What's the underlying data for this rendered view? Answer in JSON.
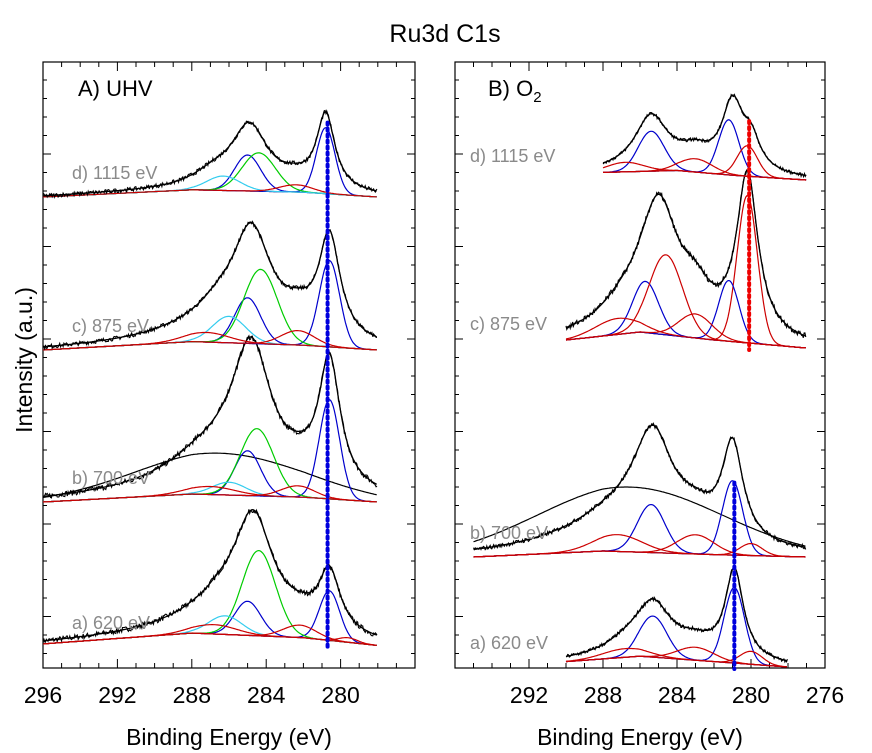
{
  "figure": {
    "title": "Ru3d C1s",
    "ylabel": "Intensity (a.u.)"
  },
  "colors": {
    "spectrum": "#000000",
    "background_fit": "#7b4a1a",
    "blue_component": "#0000cc",
    "green_component": "#00cc00",
    "cyan_component": "#33ccee",
    "red_component": "#cc0000",
    "marker_blue": "#0000dd",
    "marker_red": "#ee0000",
    "energy_label": "#8a8a8a"
  },
  "chart_data": [
    {
      "type": "line",
      "panel": "A",
      "label_prefix": "A) ",
      "label_main": "UHV",
      "label_sub": "",
      "xlabel": "Binding Energy (eV)",
      "xlim": [
        296,
        276
      ],
      "x_reversed": true,
      "ticks": [
        296,
        292,
        288,
        284,
        280
      ],
      "tick_labels": [
        "296",
        "292",
        "288",
        "284",
        "280"
      ],
      "marker_line": {
        "x": 280.7,
        "color": "blue",
        "from_trace": 0,
        "to_trace": 3
      },
      "traces": [
        {
          "label": "a) 620 eV",
          "ref": "a",
          "x_range": [
            296,
            278
          ],
          "peaks": [
            [
              280.6,
              0.7,
              0.38
            ],
            [
              284.7,
              1.3,
              0.72
            ],
            [
              286.5,
              1.4,
              0.1
            ],
            [
              282.2,
              1.2,
              0.06
            ],
            [
              287.5,
              3.0,
              0.06
            ]
          ],
          "background": [
            [
              296,
              0.02
            ],
            [
              288,
              0.09
            ],
            [
              282,
              0.06
            ],
            [
              278,
              0.01
            ]
          ],
          "components": [
            {
              "color": "blue",
              "center": 280.6,
              "width": 0.55,
              "height": 0.32
            },
            {
              "color": "blue",
              "center": 285.0,
              "width": 0.7,
              "height": 0.22
            },
            {
              "color": "green",
              "center": 284.4,
              "width": 0.9,
              "height": 0.55
            },
            {
              "color": "cyan",
              "center": 286.2,
              "width": 0.9,
              "height": 0.12
            },
            {
              "color": "red",
              "center": 282.2,
              "width": 0.9,
              "height": 0.08
            },
            {
              "color": "red",
              "center": 286.8,
              "width": 1.2,
              "height": 0.06
            },
            {
              "color": "red",
              "center": 279.6,
              "width": 0.5,
              "height": 0.03
            }
          ]
        },
        {
          "label": "b) 700 eV",
          "ref": "b",
          "x_range": [
            296,
            278
          ],
          "peaks": [
            [
              280.6,
              0.7,
              0.78
            ],
            [
              284.8,
              1.3,
              0.82
            ],
            [
              287.0,
              3.0,
              0.22
            ],
            [
              282.2,
              1.0,
              0.06
            ]
          ],
          "background": [
            [
              296,
              0.0
            ],
            [
              288,
              0.05
            ],
            [
              282,
              0.03
            ],
            [
              278,
              0.0
            ]
          ],
          "broad_background": {
            "center": 286.5,
            "width": 4.5,
            "height": 0.26
          },
          "components": [
            {
              "color": "blue",
              "center": 280.6,
              "width": 0.55,
              "height": 0.62
            },
            {
              "color": "blue",
              "center": 285.0,
              "width": 0.7,
              "height": 0.28
            },
            {
              "color": "green",
              "center": 284.5,
              "width": 0.9,
              "height": 0.42
            },
            {
              "color": "cyan",
              "center": 286.0,
              "width": 0.9,
              "height": 0.08
            },
            {
              "color": "red",
              "center": 282.3,
              "width": 0.9,
              "height": 0.07
            },
            {
              "color": "red",
              "center": 287.0,
              "width": 1.3,
              "height": 0.05
            }
          ]
        },
        {
          "label": "c) 875 eV",
          "ref": "c",
          "x_range": [
            296,
            278
          ],
          "peaks": [
            [
              280.6,
              0.7,
              0.84
            ],
            [
              284.8,
              1.3,
              0.88
            ],
            [
              286.6,
              1.3,
              0.14
            ],
            [
              282.3,
              1.1,
              0.14
            ],
            [
              288.0,
              3.0,
              0.07
            ]
          ],
          "background": [
            [
              296,
              0.0
            ],
            [
              288,
              0.07
            ],
            [
              282,
              0.04
            ],
            [
              278,
              0.0
            ]
          ],
          "components": [
            {
              "color": "blue",
              "center": 280.6,
              "width": 0.55,
              "height": 0.72
            },
            {
              "color": "blue",
              "center": 285.0,
              "width": 0.7,
              "height": 0.38
            },
            {
              "color": "green",
              "center": 284.3,
              "width": 0.9,
              "height": 0.62
            },
            {
              "color": "cyan",
              "center": 286.0,
              "width": 0.9,
              "height": 0.22
            },
            {
              "color": "red",
              "center": 282.3,
              "width": 0.9,
              "height": 0.12
            },
            {
              "color": "red",
              "center": 287.2,
              "width": 1.2,
              "height": 0.08
            }
          ]
        },
        {
          "label": "d) 1115 eV",
          "ref": "d",
          "x_range": [
            296,
            278
          ],
          "peaks": [
            [
              280.8,
              0.6,
              0.62
            ],
            [
              284.9,
              1.2,
              0.52
            ],
            [
              286.8,
              1.3,
              0.1
            ],
            [
              282.5,
              1.0,
              0.06
            ]
          ],
          "background": [
            [
              296,
              0.0
            ],
            [
              288,
              0.06
            ],
            [
              282,
              0.04
            ],
            [
              278,
              0.0
            ]
          ],
          "components": [
            {
              "color": "blue",
              "center": 280.8,
              "width": 0.5,
              "height": 0.55
            },
            {
              "color": "blue",
              "center": 285.0,
              "width": 0.7,
              "height": 0.3
            },
            {
              "color": "green",
              "center": 284.4,
              "width": 0.9,
              "height": 0.32
            },
            {
              "color": "cyan",
              "center": 286.3,
              "width": 0.9,
              "height": 0.12
            },
            {
              "color": "red",
              "center": 282.4,
              "width": 0.9,
              "height": 0.06
            }
          ]
        }
      ]
    },
    {
      "type": "line",
      "panel": "B",
      "label_prefix": "B) O",
      "label_main": "",
      "label_sub": "2",
      "xlabel": "Binding Energy (eV)",
      "xlim": [
        296,
        276
      ],
      "x_reversed": true,
      "ticks": [
        292,
        288,
        284,
        280,
        276
      ],
      "tick_labels": [
        "292",
        "288",
        "284",
        "280",
        "276"
      ],
      "marker_line": {
        "x": 280.9,
        "color": "blue",
        "from_trace": 0,
        "to_trace": 1
      },
      "marker_line_2": {
        "x": 280.1,
        "color": "red",
        "from_trace": 2,
        "to_trace": 3
      },
      "traces": [
        {
          "label": "a) 620 eV",
          "ref": "a",
          "x_range": [
            290,
            278
          ],
          "peaks": [
            [
              280.9,
              0.6,
              0.82
            ],
            [
              285.3,
              1.2,
              0.46
            ],
            [
              283.0,
              1.2,
              0.12
            ],
            [
              286.8,
              1.4,
              0.08
            ]
          ],
          "background": [
            [
              290,
              0.05
            ],
            [
              286,
              0.1
            ],
            [
              282,
              0.05
            ],
            [
              278,
              0.0
            ]
          ],
          "components": [
            {
              "color": "blue",
              "center": 280.9,
              "width": 0.55,
              "height": 0.7
            },
            {
              "color": "blue",
              "center": 285.3,
              "width": 0.75,
              "height": 0.38
            },
            {
              "color": "red",
              "center": 283.0,
              "width": 1.0,
              "height": 0.12
            },
            {
              "color": "red",
              "center": 280.0,
              "width": 0.6,
              "height": 0.12
            },
            {
              "color": "red",
              "center": 286.8,
              "width": 1.2,
              "height": 0.08
            }
          ]
        },
        {
          "label": "b) 700 eV",
          "ref": "b",
          "x_range": [
            295,
            277
          ],
          "peaks": [
            [
              281.0,
              0.7,
              0.8
            ],
            [
              285.3,
              1.3,
              0.78
            ],
            [
              287.0,
              3.5,
              0.28
            ],
            [
              283.0,
              1.2,
              0.16
            ]
          ],
          "background": [
            [
              295,
              0.0
            ],
            [
              288,
              0.05
            ],
            [
              282,
              0.02
            ],
            [
              277,
              0.0
            ]
          ],
          "broad_background": {
            "center": 286.5,
            "width": 5.0,
            "height": 0.54
          },
          "components": [
            {
              "color": "blue",
              "center": 281.0,
              "width": 0.55,
              "height": 0.62
            },
            {
              "color": "blue",
              "center": 285.4,
              "width": 0.75,
              "height": 0.4
            },
            {
              "color": "red",
              "center": 283.0,
              "width": 1.0,
              "height": 0.16
            },
            {
              "color": "red",
              "center": 287.2,
              "width": 1.3,
              "height": 0.14
            },
            {
              "color": "red",
              "center": 280.0,
              "width": 0.6,
              "height": 0.1
            }
          ]
        },
        {
          "label": "c) 875 eV",
          "ref": "c",
          "x_range": [
            290,
            277
          ],
          "peaks": [
            [
              280.2,
              0.7,
              1.0
            ],
            [
              285.0,
              1.3,
              0.78
            ],
            [
              283.0,
              1.0,
              0.18
            ],
            [
              287.0,
              1.5,
              0.1
            ]
          ],
          "background": [
            [
              290,
              0.05
            ],
            [
              286,
              0.1
            ],
            [
              282,
              0.05
            ],
            [
              277,
              0.0
            ]
          ],
          "components": [
            {
              "color": "red",
              "center": 280.2,
              "width": 0.55,
              "height": 0.92
            },
            {
              "color": "blue",
              "center": 281.2,
              "width": 0.55,
              "height": 0.38
            },
            {
              "color": "blue",
              "center": 285.7,
              "width": 0.7,
              "height": 0.32
            },
            {
              "color": "red",
              "center": 284.6,
              "width": 0.9,
              "height": 0.5
            },
            {
              "color": "red",
              "center": 283.0,
              "width": 0.9,
              "height": 0.15
            },
            {
              "color": "red",
              "center": 287.2,
              "width": 1.2,
              "height": 0.1
            }
          ]
        },
        {
          "label": "d) 1115 eV",
          "ref": "d",
          "x_range": [
            288,
            277
          ],
          "peaks": [
            [
              281.0,
              0.7,
              0.7
            ],
            [
              285.4,
              1.1,
              0.56
            ],
            [
              283.0,
              1.0,
              0.16
            ],
            [
              280.0,
              0.6,
              0.3
            ]
          ],
          "background": [
            [
              288,
              0.08
            ],
            [
              284,
              0.1
            ],
            [
              281,
              0.05
            ],
            [
              277,
              0.0
            ]
          ],
          "components": [
            {
              "color": "blue",
              "center": 281.2,
              "width": 0.55,
              "height": 0.58
            },
            {
              "color": "blue",
              "center": 285.4,
              "width": 0.7,
              "height": 0.42
            },
            {
              "color": "red",
              "center": 280.2,
              "width": 0.55,
              "height": 0.32
            },
            {
              "color": "red",
              "center": 283.0,
              "width": 0.9,
              "height": 0.14
            },
            {
              "color": "red",
              "center": 286.8,
              "width": 1.0,
              "height": 0.1
            }
          ]
        }
      ]
    }
  ]
}
